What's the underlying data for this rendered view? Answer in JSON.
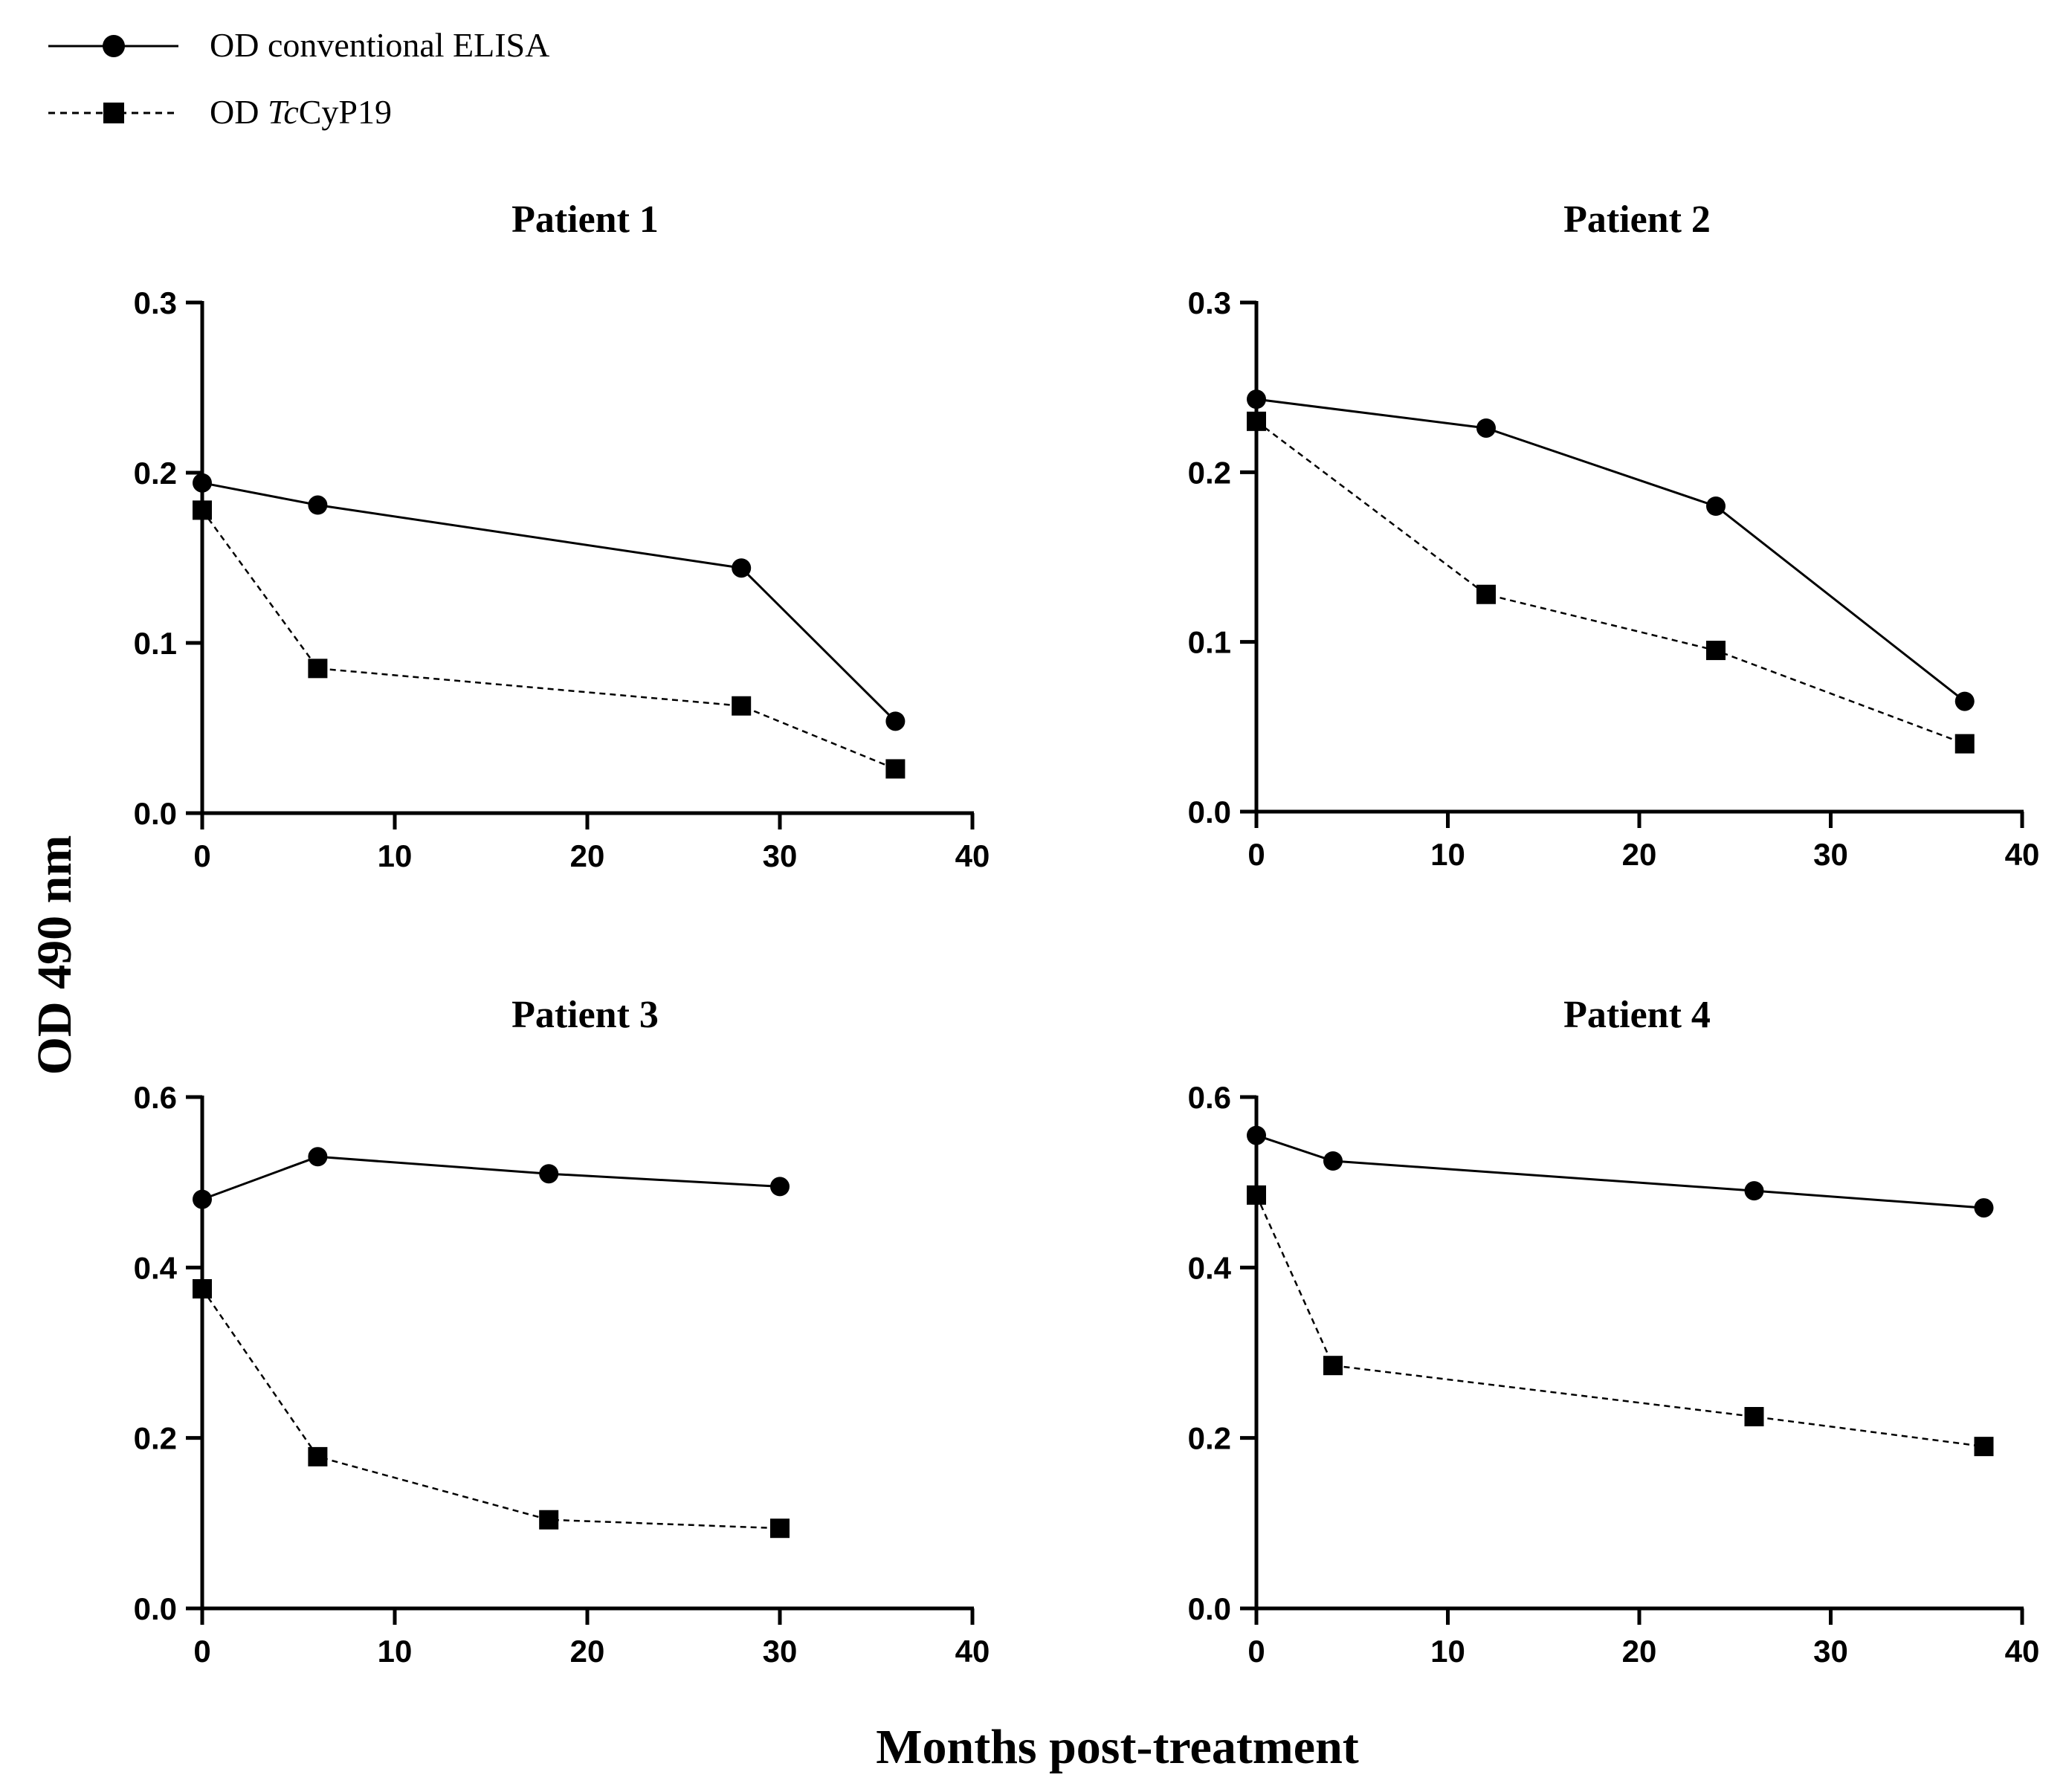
{
  "figure": {
    "y_axis_title": "OD 490 nm",
    "x_axis_title": "Months post-treatment"
  },
  "legend": {
    "items": [
      {
        "series": "elisa",
        "label": "OD conventional ELISA",
        "line": "solid",
        "marker": "circle"
      },
      {
        "series": "tccyp",
        "label_prefix": "OD ",
        "label_italic": "Tc",
        "label_suffix": "CyP19",
        "line": "dashed",
        "marker": "square"
      }
    ]
  },
  "colors": {
    "ink": "#000000",
    "background": "#ffffff"
  },
  "chart_data": [
    {
      "type": "line",
      "title": "Patient 1",
      "xlabel": "Months post-treatment",
      "ylabel": "OD 490 nm",
      "xlim": [
        0,
        40
      ],
      "ylim": [
        0,
        0.3
      ],
      "xticks": [
        0,
        10,
        20,
        30,
        40
      ],
      "yticks": [
        0.0,
        0.1,
        0.2,
        0.3
      ],
      "ytick_labels": [
        "0.0",
        "0.1",
        "0.2",
        "0.3"
      ],
      "series": [
        {
          "name": "OD conventional ELISA",
          "x": [
            0,
            6,
            28,
            36
          ],
          "values": [
            0.194,
            0.181,
            0.144,
            0.054
          ]
        },
        {
          "name": "OD TcCyP19",
          "x": [
            0,
            6,
            28,
            36
          ],
          "values": [
            0.178,
            0.085,
            0.063,
            0.026
          ]
        }
      ]
    },
    {
      "type": "line",
      "title": "Patient 2",
      "xlabel": "Months post-treatment",
      "ylabel": "OD 490 nm",
      "xlim": [
        0,
        40
      ],
      "ylim": [
        0,
        0.3
      ],
      "xticks": [
        0,
        10,
        20,
        30,
        40
      ],
      "yticks": [
        0.0,
        0.1,
        0.2,
        0.3
      ],
      "ytick_labels": [
        "0.0",
        "0.1",
        "0.2",
        "0.3"
      ],
      "series": [
        {
          "name": "OD conventional ELISA",
          "x": [
            0,
            12,
            24,
            37
          ],
          "values": [
            0.243,
            0.226,
            0.18,
            0.065
          ]
        },
        {
          "name": "OD TcCyP19",
          "x": [
            0,
            12,
            24,
            37
          ],
          "values": [
            0.23,
            0.128,
            0.095,
            0.04
          ]
        }
      ]
    },
    {
      "type": "line",
      "title": "Patient 3",
      "xlabel": "Months post-treatment",
      "ylabel": "OD 490 nm",
      "xlim": [
        0,
        40
      ],
      "ylim": [
        0,
        0.6
      ],
      "xticks": [
        0,
        10,
        20,
        30,
        40
      ],
      "yticks": [
        0.0,
        0.2,
        0.4,
        0.6
      ],
      "ytick_labels": [
        "0.0",
        "0.2",
        "0.4",
        "0.6"
      ],
      "series": [
        {
          "name": "OD conventional ELISA",
          "x": [
            0,
            6,
            18,
            30
          ],
          "values": [
            0.48,
            0.53,
            0.51,
            0.495
          ]
        },
        {
          "name": "OD TcCyP19",
          "x": [
            0,
            6,
            18,
            30
          ],
          "values": [
            0.375,
            0.178,
            0.104,
            0.094
          ]
        }
      ]
    },
    {
      "type": "line",
      "title": "Patient 4",
      "xlabel": "Months post-treatment",
      "ylabel": "OD 490 nm",
      "xlim": [
        0,
        40
      ],
      "ylim": [
        0,
        0.6
      ],
      "xticks": [
        0,
        10,
        20,
        30,
        40
      ],
      "yticks": [
        0.0,
        0.2,
        0.4,
        0.6
      ],
      "ytick_labels": [
        "0.0",
        "0.2",
        "0.4",
        "0.6"
      ],
      "series": [
        {
          "name": "OD conventional ELISA",
          "x": [
            0,
            4,
            26,
            38
          ],
          "values": [
            0.555,
            0.525,
            0.49,
            0.47
          ]
        },
        {
          "name": "OD TcCyP19",
          "x": [
            0,
            4,
            26,
            38
          ],
          "values": [
            0.485,
            0.285,
            0.225,
            0.19
          ]
        }
      ]
    }
  ]
}
